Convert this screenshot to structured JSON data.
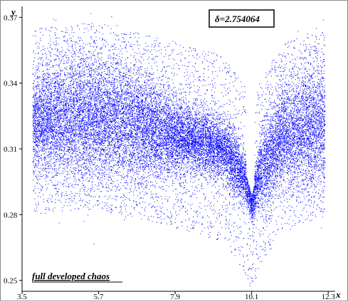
{
  "chart_data": {
    "type": "scatter",
    "title": "",
    "xlabel": "x",
    "ylabel": "y",
    "xlim": [
      3.5,
      12.5
    ],
    "ylim": [
      0.245,
      0.375
    ],
    "x_ticks": [
      "3.5",
      "5.7",
      "7.9",
      "10.1",
      "12.3"
    ],
    "y_ticks": [
      "0.25",
      "0.28",
      "0.31",
      "0.34",
      "0.37"
    ],
    "x_tick_values": [
      3.5,
      5.7,
      7.9,
      10.1,
      12.3
    ],
    "y_tick_values": [
      0.25,
      0.28,
      0.31,
      0.34,
      0.37
    ],
    "grid": false,
    "point_color": "#0000ff",
    "annotation": "δ=2.754064",
    "caption": "full developed chaos",
    "series": [
      {
        "x_range": [
          3.8,
          12.2
        ],
        "band_center_samples": [
          [
            3.8,
            0.322
          ],
          [
            4.5,
            0.324
          ],
          [
            5.5,
            0.325
          ],
          [
            6.5,
            0.322
          ],
          [
            7.5,
            0.318
          ],
          [
            8.5,
            0.314
          ],
          [
            9.3,
            0.31
          ],
          [
            9.9,
            0.296
          ],
          [
            10.1,
            0.285
          ],
          [
            10.3,
            0.298
          ],
          [
            11.0,
            0.316
          ],
          [
            12.2,
            0.322
          ]
        ]
      }
    ]
  }
}
